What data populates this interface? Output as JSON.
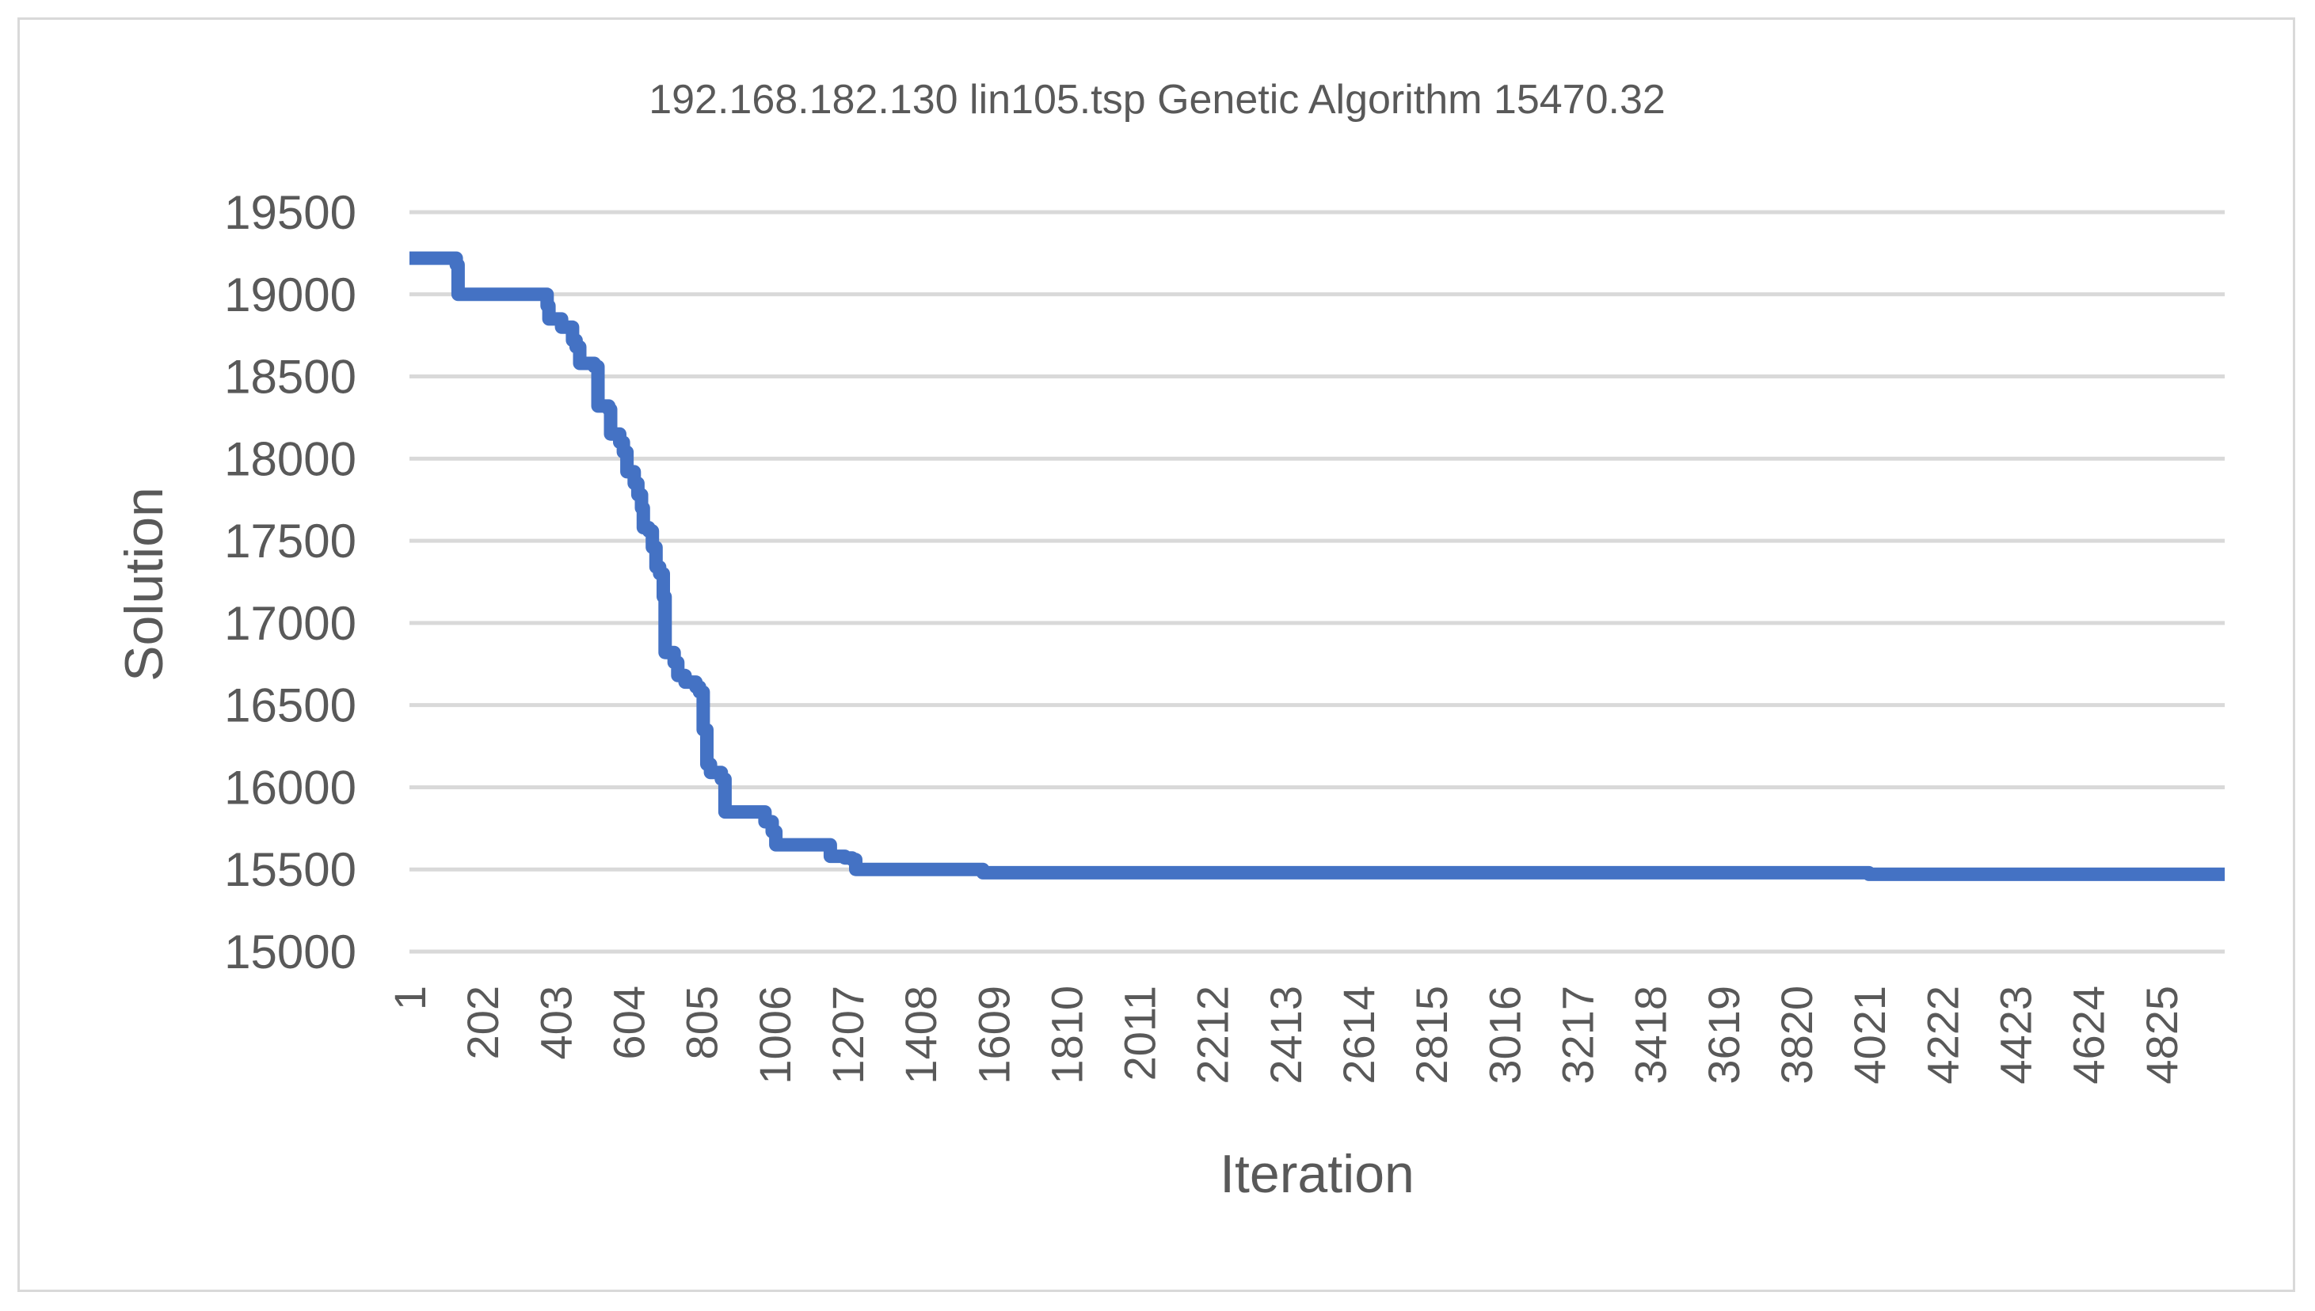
{
  "chart_data": {
    "type": "line",
    "title": "192.168.182.130 lin105.tsp  Genetic Algorithm 15470.32",
    "xlabel": "Iteration",
    "ylabel": "Solution",
    "ylim": [
      15000,
      19500
    ],
    "xlim": [
      1,
      5000
    ],
    "y_ticks": [
      15000,
      15500,
      16000,
      16500,
      17000,
      17500,
      18000,
      18500,
      19000,
      19500
    ],
    "x_tick_labels": [
      "1",
      "202",
      "403",
      "604",
      "805",
      "1006",
      "1207",
      "1408",
      "1609",
      "1810",
      "2011",
      "2212",
      "2413",
      "2614",
      "2815",
      "3016",
      "3217",
      "3418",
      "3619",
      "3820",
      "4021",
      "4222",
      "4423",
      "4624",
      "4825"
    ],
    "grid": true,
    "legend": false,
    "series": [
      {
        "name": "Solution",
        "color": "#4472c4",
        "points": [
          [
            1,
            19220
          ],
          [
            120,
            19220
          ],
          [
            130,
            19180
          ],
          [
            135,
            19000
          ],
          [
            360,
            19000
          ],
          [
            380,
            18930
          ],
          [
            385,
            18850
          ],
          [
            420,
            18800
          ],
          [
            450,
            18720
          ],
          [
            460,
            18680
          ],
          [
            470,
            18580
          ],
          [
            510,
            18560
          ],
          [
            520,
            18320
          ],
          [
            550,
            18300
          ],
          [
            555,
            18150
          ],
          [
            580,
            18100
          ],
          [
            590,
            18040
          ],
          [
            600,
            17920
          ],
          [
            620,
            17850
          ],
          [
            630,
            17780
          ],
          [
            640,
            17700
          ],
          [
            645,
            17580
          ],
          [
            660,
            17560
          ],
          [
            670,
            17460
          ],
          [
            680,
            17340
          ],
          [
            690,
            17300
          ],
          [
            700,
            17160
          ],
          [
            705,
            16820
          ],
          [
            730,
            16760
          ],
          [
            740,
            16680
          ],
          [
            760,
            16640
          ],
          [
            790,
            16610
          ],
          [
            800,
            16580
          ],
          [
            810,
            16350
          ],
          [
            820,
            16140
          ],
          [
            830,
            16090
          ],
          [
            860,
            16050
          ],
          [
            870,
            15850
          ],
          [
            960,
            15850
          ],
          [
            980,
            15790
          ],
          [
            1000,
            15730
          ],
          [
            1010,
            15650
          ],
          [
            1140,
            15650
          ],
          [
            1160,
            15580
          ],
          [
            1200,
            15570
          ],
          [
            1220,
            15560
          ],
          [
            1230,
            15500
          ],
          [
            1560,
            15500
          ],
          [
            1580,
            15480
          ],
          [
            4000,
            15480
          ],
          [
            4020,
            15470
          ],
          [
            5000,
            15470
          ]
        ]
      }
    ]
  }
}
